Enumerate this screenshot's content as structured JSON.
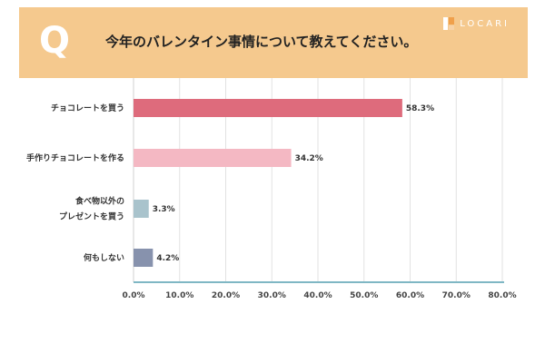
{
  "header": {
    "q_letter": "Q",
    "question": "今年のバレンタイン事情について教えてください。",
    "brand": "LOCARI"
  },
  "chart_data": {
    "type": "bar",
    "orientation": "horizontal",
    "categories": [
      [
        "チョコレートを買う"
      ],
      [
        "手作りチョコレートを作る"
      ],
      [
        "食べ物以外の",
        "プレゼントを買う"
      ],
      [
        "何もしない"
      ]
    ],
    "values": [
      58.3,
      34.2,
      3.3,
      4.2
    ],
    "value_labels": [
      "58.3%",
      "34.2%",
      "3.3%",
      "4.2%"
    ],
    "bar_colors": [
      "#de6b7c",
      "#f4b8c3",
      "#a9c3cc",
      "#8792ad"
    ],
    "xlim": [
      0,
      80
    ],
    "x_ticks": [
      "0.0%",
      "10.0%",
      "20.0%",
      "30.0%",
      "40.0%",
      "50.0%",
      "60.0%",
      "70.0%",
      "80.0%"
    ],
    "grid": true
  },
  "colors": {
    "header_bg": "#f5c98e",
    "axis": "#7fb7c4",
    "grid": "#e2e2e2"
  }
}
